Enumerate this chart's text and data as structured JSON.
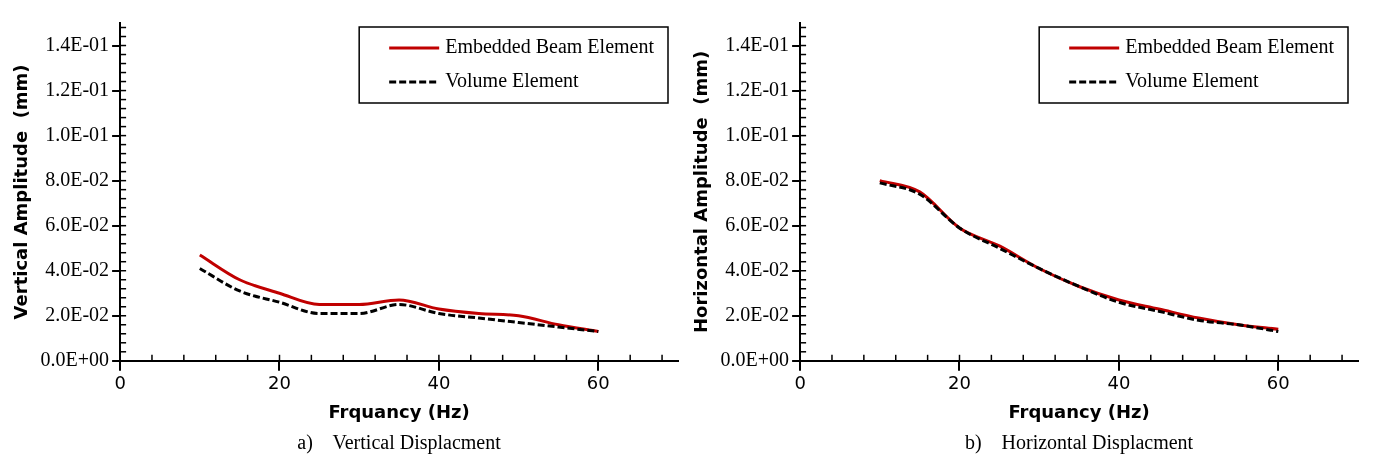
{
  "chart_data": [
    {
      "type": "line",
      "xlabel": "Frquancy (Hz)",
      "ylabel": "Vertical Amplitude  (mm)",
      "annotations": [
        "a)    Vertical Displacment"
      ],
      "x": [
        10,
        15,
        20,
        25,
        30,
        35,
        40,
        45,
        50,
        55,
        60
      ],
      "series": [
        {
          "name": "Embedded Beam Element",
          "color": "#c00000",
          "line_style": "solid",
          "values": [
            0.047,
            0.036,
            0.03,
            0.025,
            0.025,
            0.027,
            0.023,
            0.021,
            0.02,
            0.016,
            0.013
          ]
        },
        {
          "name": "Volume Element",
          "color": "#000000",
          "line_style": "dashed",
          "values": [
            0.041,
            0.031,
            0.026,
            0.021,
            0.021,
            0.025,
            0.021,
            0.019,
            0.017,
            0.015,
            0.013
          ]
        }
      ],
      "xlim": [
        0,
        70
      ],
      "xticks": [
        0,
        20,
        40,
        60
      ],
      "ylim": [
        0,
        0.15
      ],
      "yticks": [
        {
          "value": 0,
          "label": "0.0E+00"
        },
        {
          "value": 0.02,
          "label": "2.0E-02"
        },
        {
          "value": 0.04,
          "label": "4.0E-02"
        },
        {
          "value": 0.06,
          "label": "6.0E-02"
        },
        {
          "value": 0.08,
          "label": "8.0E-02"
        },
        {
          "value": 0.1,
          "label": "1.0E-01"
        },
        {
          "value": 0.12,
          "label": "1.2E-01"
        },
        {
          "value": 0.14,
          "label": "1.4E-01"
        }
      ],
      "grid": false,
      "legend": "top right",
      "marker": "none"
    },
    {
      "type": "line",
      "xlabel": "Frquancy (Hz)",
      "ylabel": "Horizontal Amplitude  (mm)",
      "annotations": [
        "b)    Horizontal Displacment"
      ],
      "x": [
        10,
        15,
        20,
        25,
        30,
        35,
        40,
        45,
        50,
        55,
        60
      ],
      "series": [
        {
          "name": "Embedded Beam Element",
          "color": "#c00000",
          "line_style": "solid",
          "values": [
            0.08,
            0.075,
            0.059,
            0.051,
            0.041,
            0.033,
            0.027,
            0.023,
            0.019,
            0.016,
            0.014
          ]
        },
        {
          "name": "Volume Element",
          "color": "#000000",
          "line_style": "dashed",
          "values": [
            0.079,
            0.074,
            0.059,
            0.05,
            0.041,
            0.033,
            0.026,
            0.022,
            0.018,
            0.016,
            0.013
          ]
        }
      ],
      "xlim": [
        0,
        70
      ],
      "xticks": [
        0,
        20,
        40,
        60
      ],
      "ylim": [
        0,
        0.15
      ],
      "yticks": [
        {
          "value": 0,
          "label": "0.0E+00"
        },
        {
          "value": 0.02,
          "label": "2.0E-02"
        },
        {
          "value": 0.04,
          "label": "4.0E-02"
        },
        {
          "value": 0.06,
          "label": "6.0E-02"
        },
        {
          "value": 0.08,
          "label": "8.0E-02"
        },
        {
          "value": 0.1,
          "label": "1.0E-01"
        },
        {
          "value": 0.12,
          "label": "1.2E-01"
        },
        {
          "value": 0.14,
          "label": "1.4E-01"
        }
      ],
      "grid": false,
      "legend": "top right",
      "marker": "none"
    }
  ]
}
